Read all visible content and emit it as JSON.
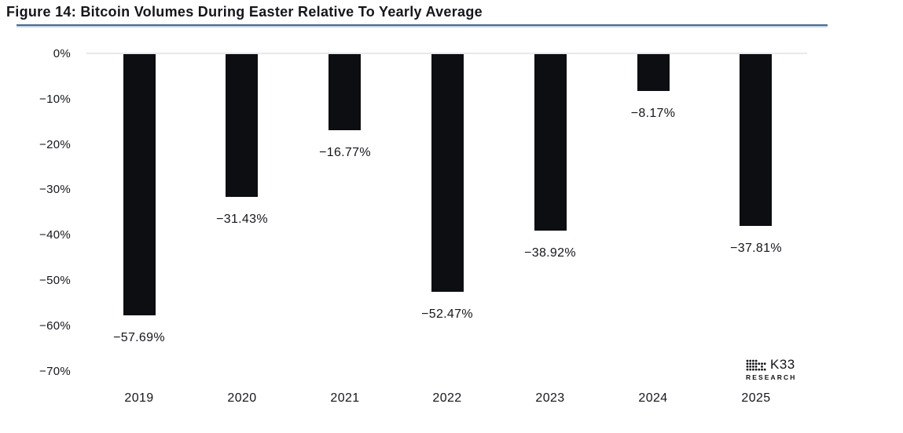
{
  "header": {
    "title": "Figure 14: Bitcoin Volumes During Easter Relative To Yearly Average"
  },
  "chart_data": {
    "type": "bar",
    "title": "Figure 14: Bitcoin Volumes During Easter Relative To Yearly Average",
    "categories": [
      "2019",
      "2020",
      "2021",
      "2022",
      "2023",
      "2024",
      "2025"
    ],
    "values": [
      -57.69,
      -31.43,
      -16.77,
      -52.47,
      -38.92,
      -8.17,
      -37.81
    ],
    "value_labels": [
      "−57.69%",
      "−31.43%",
      "−16.77%",
      "−52.47%",
      "−38.92%",
      "−8.17%",
      "−37.81%"
    ],
    "xlabel": "",
    "ylabel": "",
    "ylim": [
      -70,
      0
    ],
    "yticks": [
      {
        "label": "0%",
        "value": 0
      },
      {
        "label": "−10%",
        "value": -10
      },
      {
        "label": "−20%",
        "value": -20
      },
      {
        "label": "−30%",
        "value": -30
      },
      {
        "label": "−40%",
        "value": -40
      },
      {
        "label": "−50%",
        "value": -50
      },
      {
        "label": "−60%",
        "value": -60
      },
      {
        "label": "−70%",
        "value": -70
      }
    ],
    "grid": false,
    "legend": false,
    "bar_color": "#0d0e12",
    "zero_line_color": "#e9e9ec"
  },
  "branding": {
    "name": "K33",
    "sub": "RESEARCH"
  },
  "colors": {
    "divider_dark": "#47698f",
    "divider_light": "#c3d6e8",
    "text": "#15161b"
  }
}
